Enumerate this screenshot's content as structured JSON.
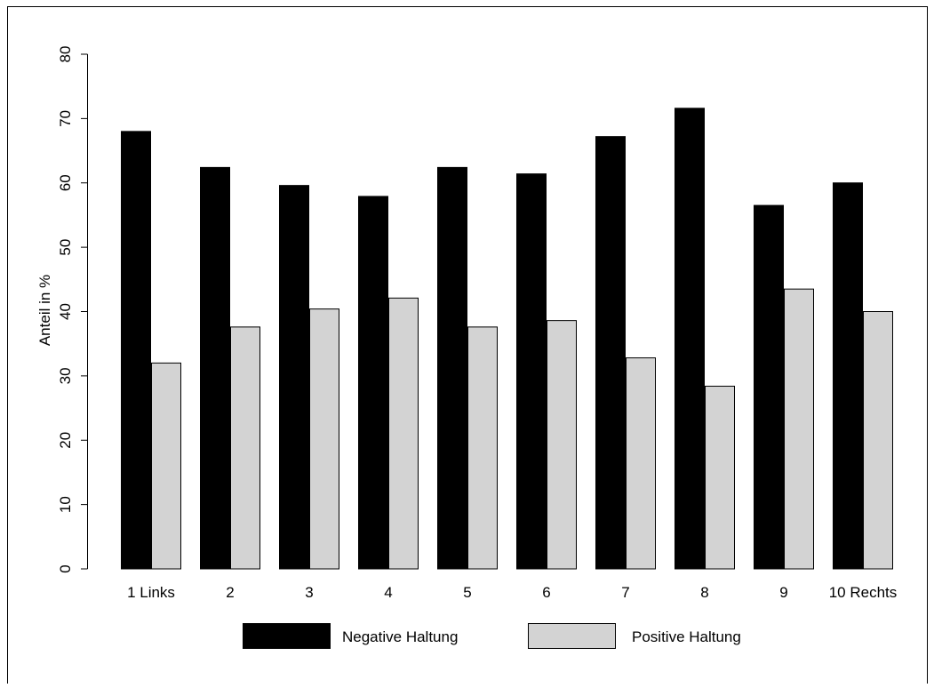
{
  "chart_data": {
    "type": "bar",
    "title": "",
    "xlabel": "",
    "ylabel": "Anteil in %",
    "ylim": [
      0,
      80
    ],
    "yticks": [
      0,
      10,
      20,
      30,
      40,
      50,
      60,
      70,
      80
    ],
    "grid": false,
    "legend_position": "bottom",
    "categories": [
      "1 Links",
      "2",
      "3",
      "4",
      "5",
      "6",
      "7",
      "8",
      "9",
      "10 Rechts"
    ],
    "series": [
      {
        "name": "Negative Haltung",
        "color": "#000000",
        "values": [
          68.0,
          62.4,
          59.6,
          57.9,
          62.4,
          61.4,
          67.2,
          71.6,
          56.5,
          60.0
        ]
      },
      {
        "name": "Positive Haltung",
        "color": "#d3d3d3",
        "values": [
          32.0,
          37.6,
          40.4,
          42.1,
          37.6,
          38.6,
          32.8,
          28.4,
          43.5,
          40.0
        ]
      }
    ]
  }
}
